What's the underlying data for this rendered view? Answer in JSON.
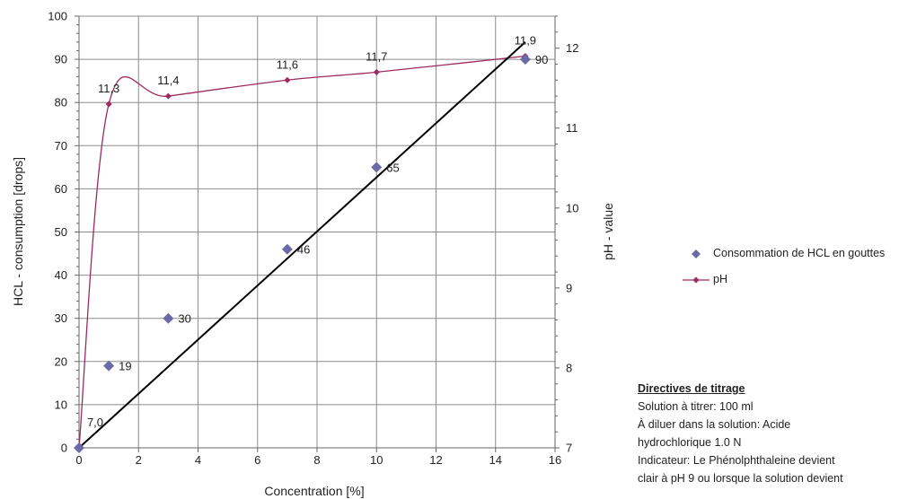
{
  "chart_data": {
    "type": "scatter",
    "xlabel": "Concentration [%]",
    "ylabel": "HCL - consumption  [drops]",
    "y2label": "pH - value",
    "xlim": [
      0,
      16
    ],
    "ylim": [
      0,
      100
    ],
    "y2lim": [
      7,
      12.4
    ],
    "x_ticks": [
      "0",
      "2",
      "4",
      "6",
      "8",
      "10",
      "12",
      "14",
      "16"
    ],
    "y_ticks": [
      "0",
      "10",
      "20",
      "30",
      "40",
      "50",
      "60",
      "70",
      "80",
      "90",
      "100"
    ],
    "y2_ticks": [
      "7",
      "8",
      "9",
      "10",
      "11",
      "12"
    ],
    "grid": true,
    "legend_position": "right",
    "series": [
      {
        "name": "Consommation de HCL en gouttes",
        "axis": "left",
        "marker": "diamond",
        "color": "#6a6aa6",
        "x": [
          0,
          1,
          3,
          7,
          10,
          15
        ],
        "y": [
          0,
          19,
          30,
          46,
          65,
          90
        ],
        "labels": [
          "",
          "19",
          "30",
          "46",
          "65",
          "90"
        ]
      },
      {
        "name": "pH",
        "axis": "right",
        "marker": "small-diamond-line",
        "color": "#9c2a5e",
        "x": [
          0,
          1,
          3,
          7,
          10,
          15
        ],
        "y": [
          7.0,
          11.3,
          11.4,
          11.6,
          11.7,
          11.9
        ],
        "labels": [
          "7,0",
          "11,3",
          "11,4",
          "11,6",
          "11,7",
          "11,9"
        ]
      }
    ],
    "trendline": {
      "x": [
        0,
        15
      ],
      "y": [
        0,
        94
      ],
      "color": "#000000"
    }
  },
  "notes": {
    "title": "Directives de titrage",
    "lines": [
      "Solution à titrer: 100 ml",
      "À diluer dans la solution: Acide",
      "hydrochlorique 1.0 N",
      "Indicateur: Le Phénolphthaleine devient",
      "clair à pH 9 ou lorsque la solution devient"
    ]
  }
}
